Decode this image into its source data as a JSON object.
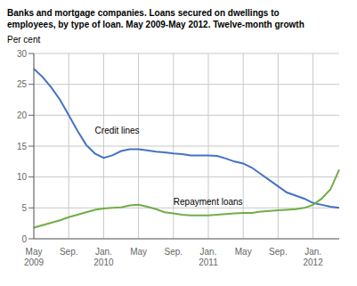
{
  "chart_data": {
    "type": "line",
    "title": "Banks and mortgage companies. Loans secured on dwellings to\nemployees, by type of loan. May 2009-May 2012. Twelve-month growth",
    "y_label": "Per cent",
    "categories": [
      "May\n2009",
      null,
      null,
      null,
      "Sep.",
      null,
      null,
      null,
      "Jan.\n2010",
      null,
      null,
      null,
      "May",
      null,
      null,
      null,
      "Sep.",
      null,
      null,
      null,
      "Jan.\n2011",
      null,
      null,
      null,
      "May",
      null,
      null,
      null,
      "Sep.",
      null,
      null,
      null,
      "Jan.\n2012",
      null,
      null,
      null
    ],
    "series": [
      {
        "name": "Credit lines",
        "color": "#4472C4",
        "values": [
          27.5,
          26.2,
          24.5,
          22.5,
          20.0,
          17.5,
          15.2,
          13.8,
          13.1,
          13.5,
          14.2,
          14.5,
          14.5,
          14.3,
          14.1,
          14.0,
          13.8,
          13.7,
          13.5,
          13.5,
          13.5,
          13.4,
          13.0,
          12.5,
          12.2,
          11.5,
          10.5,
          9.5,
          8.5,
          7.5,
          7.0,
          6.5,
          5.8,
          5.5,
          5.2,
          5.0
        ]
      },
      {
        "name": "Repayment loans",
        "color": "#70AD47",
        "values": [
          1.8,
          2.2,
          2.6,
          3.0,
          3.5,
          3.9,
          4.3,
          4.7,
          4.9,
          5.0,
          5.1,
          5.4,
          5.5,
          5.2,
          4.8,
          4.3,
          4.1,
          3.9,
          3.8,
          3.8,
          3.8,
          3.9,
          4.0,
          4.1,
          4.2,
          4.2,
          4.4,
          4.5,
          4.6,
          4.7,
          4.8,
          5.0,
          5.5,
          6.5,
          8.0,
          11.2
        ]
      }
    ],
    "ylim": [
      0,
      30
    ],
    "yticks": [
      0,
      5,
      10,
      15,
      20,
      25,
      30
    ],
    "grid": true
  }
}
